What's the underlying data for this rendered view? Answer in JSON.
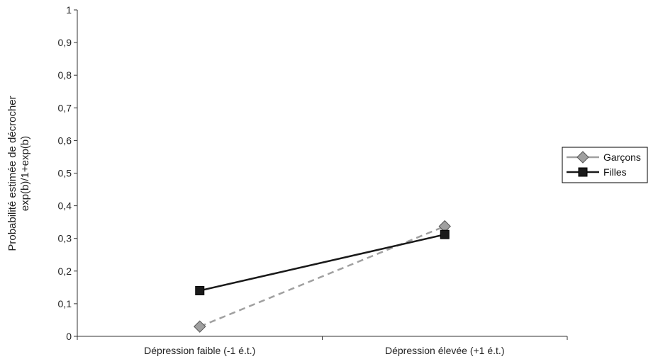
{
  "chart_data": {
    "type": "line",
    "categories": [
      "Dépression faible (-1 é.t.)",
      "Dépression élevée (+1 é.t.)"
    ],
    "ylabel": [
      "Probabilité estimée de décrocher",
      "exp(b)/1+exp(b)"
    ],
    "ylim": [
      0,
      1
    ],
    "yticks": [
      "0",
      "0,1",
      "0,2",
      "0,3",
      "0,4",
      "0,5",
      "0,6",
      "0,7",
      "0,8",
      "0,9",
      "1"
    ],
    "legend_position": "right",
    "grid": false,
    "series": [
      {
        "name": "Garçons",
        "values": [
          0.03,
          0.337
        ],
        "color": "#a0a0a0",
        "marker": "diamond",
        "line": "dashed"
      },
      {
        "name": "Filles",
        "values": [
          0.14,
          0.312
        ],
        "color": "#1a1a1a",
        "marker": "square",
        "line": "solid"
      }
    ]
  }
}
